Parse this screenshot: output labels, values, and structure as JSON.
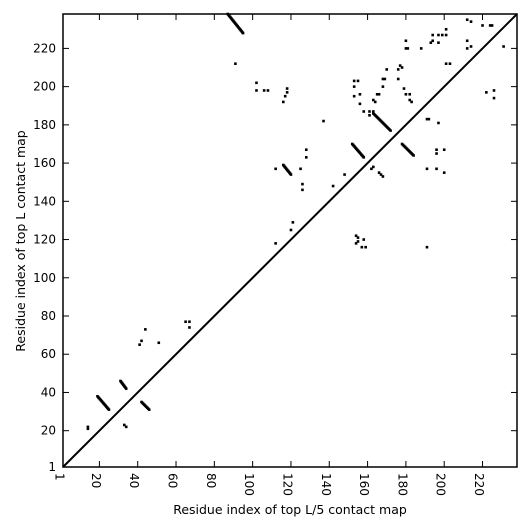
{
  "chart_data": {
    "type": "scatter",
    "title": "",
    "xlabel": "Residue index of top L/5 contact map",
    "ylabel": "Residue index of top L contact map",
    "xlim": [
      1,
      238
    ],
    "ylim": [
      1,
      238
    ],
    "xticks": [
      1,
      20,
      40,
      60,
      80,
      100,
      120,
      140,
      160,
      180,
      200,
      220
    ],
    "yticks": [
      1,
      20,
      40,
      60,
      80,
      100,
      120,
      140,
      160,
      180,
      200,
      220
    ],
    "diagonal": true,
    "grid": false,
    "marker": "square",
    "colors": {
      "points": "#000000",
      "line": "#000000",
      "frame": "#000000",
      "background": "#ffffff"
    },
    "segments": [
      {
        "x": [
          19,
          25
        ],
        "y": [
          38,
          31
        ]
      },
      {
        "x": [
          31,
          34
        ],
        "y": [
          46,
          42
        ]
      },
      {
        "x": [
          42,
          46
        ],
        "y": [
          35,
          31
        ]
      },
      {
        "x": [
          87,
          95
        ],
        "y": [
          238,
          228
        ]
      },
      {
        "x": [
          116,
          120
        ],
        "y": [
          159,
          154
        ]
      },
      {
        "x": [
          152,
          158
        ],
        "y": [
          170,
          163
        ]
      },
      {
        "x": [
          163,
          172
        ],
        "y": [
          186,
          177
        ]
      },
      {
        "x": [
          178,
          184
        ],
        "y": [
          170,
          164
        ]
      }
    ],
    "points": [
      [
        14,
        21
      ],
      [
        14,
        22
      ],
      [
        33,
        23
      ],
      [
        34,
        22
      ],
      [
        41,
        65
      ],
      [
        42,
        67
      ],
      [
        44,
        73
      ],
      [
        51,
        66
      ],
      [
        65,
        77
      ],
      [
        67,
        77
      ],
      [
        67,
        74
      ],
      [
        91,
        212
      ],
      [
        102,
        202
      ],
      [
        102,
        198
      ],
      [
        106,
        198
      ],
      [
        108,
        198
      ],
      [
        112,
        118
      ],
      [
        112,
        157
      ],
      [
        116,
        192
      ],
      [
        117,
        195
      ],
      [
        118,
        197
      ],
      [
        118,
        199
      ],
      [
        120,
        125
      ],
      [
        121,
        129
      ],
      [
        125,
        157
      ],
      [
        126,
        149
      ],
      [
        126,
        146
      ],
      [
        128,
        167
      ],
      [
        128,
        163
      ],
      [
        137,
        182
      ],
      [
        142,
        148
      ],
      [
        148,
        154
      ],
      [
        153,
        203
      ],
      [
        153,
        200
      ],
      [
        153,
        195
      ],
      [
        154,
        122
      ],
      [
        154,
        118
      ],
      [
        155,
        121
      ],
      [
        155,
        119
      ],
      [
        155,
        203
      ],
      [
        156,
        196
      ],
      [
        156,
        191
      ],
      [
        157,
        116
      ],
      [
        158,
        120
      ],
      [
        158,
        187
      ],
      [
        159,
        116
      ],
      [
        161,
        185
      ],
      [
        161,
        187
      ],
      [
        162,
        157
      ],
      [
        163,
        158
      ],
      [
        163,
        187
      ],
      [
        163,
        193
      ],
      [
        164,
        192
      ],
      [
        165,
        196
      ],
      [
        166,
        196
      ],
      [
        166,
        155
      ],
      [
        167,
        154
      ],
      [
        168,
        153
      ],
      [
        168,
        200
      ],
      [
        168,
        204
      ],
      [
        169,
        204
      ],
      [
        170,
        209
      ],
      [
        176,
        204
      ],
      [
        176,
        209
      ],
      [
        177,
        211
      ],
      [
        178,
        210
      ],
      [
        179,
        199
      ],
      [
        180,
        196
      ],
      [
        180,
        224
      ],
      [
        180,
        220
      ],
      [
        181,
        220
      ],
      [
        182,
        193
      ],
      [
        182,
        196
      ],
      [
        183,
        192
      ],
      [
        188,
        220
      ],
      [
        191,
        116
      ],
      [
        191,
        157
      ],
      [
        191,
        183
      ],
      [
        192,
        183
      ],
      [
        193,
        223
      ],
      [
        194,
        227
      ],
      [
        194,
        224
      ],
      [
        196,
        165
      ],
      [
        196,
        167
      ],
      [
        196,
        157
      ],
      [
        197,
        181
      ],
      [
        197,
        227
      ],
      [
        197,
        223
      ],
      [
        199,
        227
      ],
      [
        200,
        155
      ],
      [
        200,
        167
      ],
      [
        201,
        230
      ],
      [
        201,
        227
      ],
      [
        201,
        212
      ],
      [
        203,
        212
      ],
      [
        212,
        235
      ],
      [
        212,
        220
      ],
      [
        212,
        224
      ],
      [
        214,
        221
      ],
      [
        214,
        234
      ],
      [
        220,
        232
      ],
      [
        222,
        197
      ],
      [
        224,
        232
      ],
      [
        225,
        232
      ],
      [
        226,
        194
      ],
      [
        226,
        198
      ],
      [
        231,
        221
      ]
    ]
  }
}
